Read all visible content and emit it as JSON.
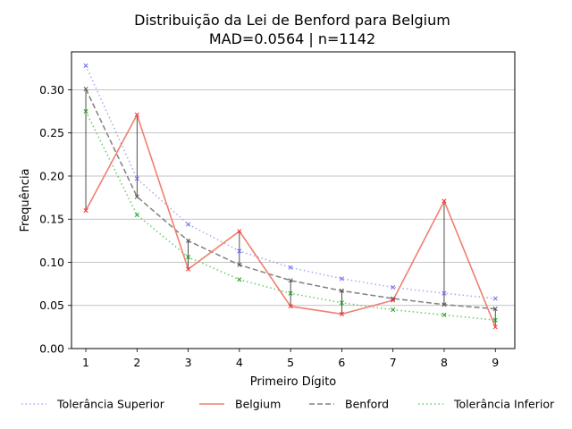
{
  "chart_data": {
    "type": "line",
    "title": "Distribuição da Lei de Benford para Belgium",
    "subtitle": "MAD=0.0564 | n=1142",
    "xlabel": "Primeiro Dígito",
    "ylabel": "Frequência",
    "x": [
      1,
      2,
      3,
      4,
      5,
      6,
      7,
      8,
      9
    ],
    "xlim": [
      0.72,
      9.38
    ],
    "ylim": [
      0,
      0.344
    ],
    "yticks": [
      0.0,
      0.05,
      0.1,
      0.15,
      0.2,
      0.25,
      0.3
    ],
    "grid": "y",
    "legend_placement": "bottom",
    "series": [
      {
        "name": "Tolerância Superior",
        "style": "dotted",
        "color": "#a8a8f0",
        "marker_color": "#6b6bff",
        "values": [
          0.328,
          0.197,
          0.144,
          0.113,
          0.094,
          0.081,
          0.071,
          0.064,
          0.058
        ]
      },
      {
        "name": "Belgium",
        "style": "solid",
        "color": "#f08070",
        "marker_color": "#ff2a2a",
        "values": [
          0.16,
          0.271,
          0.092,
          0.136,
          0.049,
          0.04,
          0.056,
          0.171,
          0.025
        ]
      },
      {
        "name": "Benford",
        "style": "dashed",
        "color": "#808080",
        "marker_color": "#555555",
        "values": [
          0.301,
          0.176,
          0.125,
          0.097,
          0.079,
          0.067,
          0.058,
          0.051,
          0.046
        ]
      },
      {
        "name": "Tolerância Inferior",
        "style": "dotted",
        "color": "#66cc66",
        "marker_color": "#1aa31a",
        "values": [
          0.275,
          0.155,
          0.106,
          0.08,
          0.064,
          0.053,
          0.045,
          0.039,
          0.033
        ]
      }
    ]
  }
}
